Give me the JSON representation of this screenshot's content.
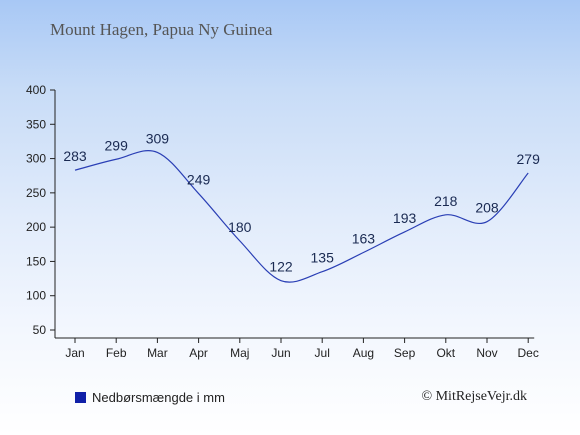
{
  "chart_title": "Mount Hagen, Papua Ny Guinea",
  "credit": "© MitRejseVejr.dk",
  "colors": {
    "line": "#2a3fb5",
    "legend_swatch": "#1020a8",
    "axis": "#222222"
  },
  "chart_data": {
    "type": "line",
    "categories": [
      "Jan",
      "Feb",
      "Mar",
      "Apr",
      "Maj",
      "Jun",
      "Jul",
      "Aug",
      "Sep",
      "Okt",
      "Nov",
      "Dec"
    ],
    "series": [
      {
        "name": "Nedbørsmængde i mm",
        "values": [
          283,
          299,
          309,
          249,
          180,
          122,
          135,
          163,
          193,
          218,
          208,
          279
        ]
      }
    ],
    "ylim": [
      50,
      400
    ],
    "yticks": [
      50,
      100,
      150,
      200,
      250,
      300,
      350,
      400
    ],
    "grid": false,
    "legend_position": "bottom-left"
  }
}
